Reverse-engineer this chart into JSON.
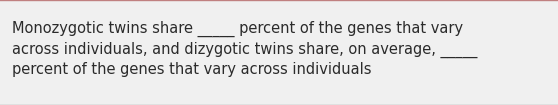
{
  "text_line1": "Monozygotic twins share _____ percent of the genes that vary",
  "text_line2": "across individuals, and dizygotic twins share, on average, _____",
  "text_line3": "percent of the genes that vary across individuals",
  "background_color": "#f0f0f0",
  "text_color": "#2b2b2b",
  "font_size": 10.5,
  "top_line_color": "#c08080",
  "bottom_line_color": "#a0a0a0",
  "fig_width": 5.58,
  "fig_height": 1.05,
  "dpi": 100
}
